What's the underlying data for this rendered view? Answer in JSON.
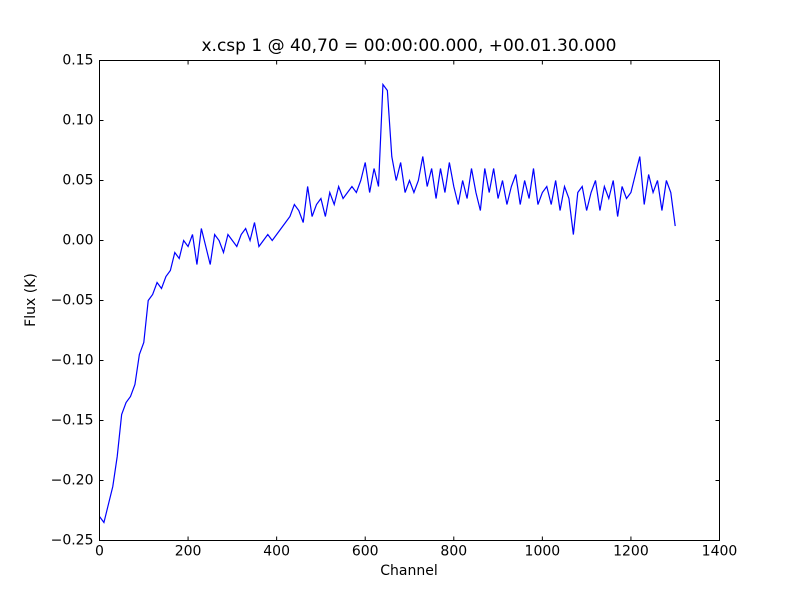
{
  "chart_data": {
    "type": "line",
    "title": "x.csp 1 @ 40,70 = 00:00:00.000, +00.01.30.000",
    "xlabel": "Channel",
    "ylabel": "Flux (K)",
    "x": [
      0,
      10,
      20,
      30,
      40,
      50,
      60,
      70,
      80,
      90,
      100,
      110,
      120,
      130,
      140,
      150,
      160,
      170,
      180,
      190,
      200,
      210,
      220,
      230,
      240,
      250,
      260,
      270,
      280,
      290,
      300,
      310,
      320,
      330,
      340,
      350,
      360,
      370,
      380,
      390,
      400,
      410,
      420,
      430,
      440,
      450,
      460,
      470,
      480,
      490,
      500,
      510,
      520,
      530,
      540,
      550,
      560,
      570,
      580,
      590,
      600,
      610,
      620,
      630,
      640,
      650,
      660,
      670,
      680,
      690,
      700,
      710,
      720,
      730,
      740,
      750,
      760,
      770,
      780,
      790,
      800,
      810,
      820,
      830,
      840,
      850,
      860,
      870,
      880,
      890,
      900,
      910,
      920,
      930,
      940,
      950,
      960,
      970,
      980,
      990,
      1000,
      1010,
      1020,
      1030,
      1040,
      1050,
      1060,
      1070,
      1080,
      1090,
      1100,
      1110,
      1120,
      1130,
      1140,
      1150,
      1160,
      1170,
      1180,
      1190,
      1200,
      1210,
      1220,
      1230,
      1240,
      1250,
      1260,
      1270,
      1280,
      1290,
      1300
    ],
    "values": [
      -0.23,
      -0.235,
      -0.22,
      -0.205,
      -0.18,
      -0.145,
      -0.135,
      -0.13,
      -0.12,
      -0.095,
      -0.085,
      -0.05,
      -0.045,
      -0.035,
      -0.04,
      -0.03,
      -0.025,
      -0.01,
      -0.015,
      0.0,
      -0.005,
      0.005,
      -0.02,
      0.01,
      -0.005,
      -0.02,
      0.005,
      0.0,
      -0.01,
      0.005,
      0.0,
      -0.005,
      0.005,
      0.01,
      0.0,
      0.015,
      -0.005,
      0.0,
      0.005,
      0.0,
      0.005,
      0.01,
      0.015,
      0.02,
      0.03,
      0.025,
      0.015,
      0.045,
      0.02,
      0.03,
      0.035,
      0.02,
      0.04,
      0.03,
      0.045,
      0.035,
      0.04,
      0.045,
      0.04,
      0.05,
      0.065,
      0.04,
      0.06,
      0.045,
      0.13,
      0.125,
      0.07,
      0.05,
      0.065,
      0.04,
      0.05,
      0.04,
      0.05,
      0.07,
      0.045,
      0.06,
      0.035,
      0.06,
      0.04,
      0.065,
      0.045,
      0.03,
      0.05,
      0.035,
      0.06,
      0.04,
      0.025,
      0.06,
      0.04,
      0.06,
      0.035,
      0.05,
      0.03,
      0.045,
      0.055,
      0.03,
      0.05,
      0.035,
      0.06,
      0.03,
      0.04,
      0.045,
      0.03,
      0.05,
      0.025,
      0.045,
      0.035,
      0.005,
      0.04,
      0.045,
      0.025,
      0.04,
      0.05,
      0.025,
      0.045,
      0.035,
      0.05,
      0.02,
      0.045,
      0.035,
      0.04,
      0.055,
      0.07,
      0.03,
      0.055,
      0.04,
      0.05,
      0.025,
      0.05,
      0.04,
      0.012
    ],
    "color": "#0000ff",
    "xlim": [
      0,
      1400
    ],
    "xticks": [
      0,
      200,
      400,
      600,
      800,
      1000,
      1200,
      1400
    ],
    "ylim": [
      -0.25,
      0.15
    ],
    "yticks": [
      {
        "value": -0.25,
        "label": "−0.25"
      },
      {
        "value": -0.2,
        "label": "−0.20"
      },
      {
        "value": -0.15,
        "label": "−0.15"
      },
      {
        "value": -0.1,
        "label": "−0.10"
      },
      {
        "value": -0.05,
        "label": "−0.05"
      },
      {
        "value": 0.0,
        "label": "0.00"
      },
      {
        "value": 0.05,
        "label": "0.05"
      },
      {
        "value": 0.1,
        "label": "0.10"
      },
      {
        "value": 0.15,
        "label": "0.15"
      }
    ],
    "grid": false
  }
}
